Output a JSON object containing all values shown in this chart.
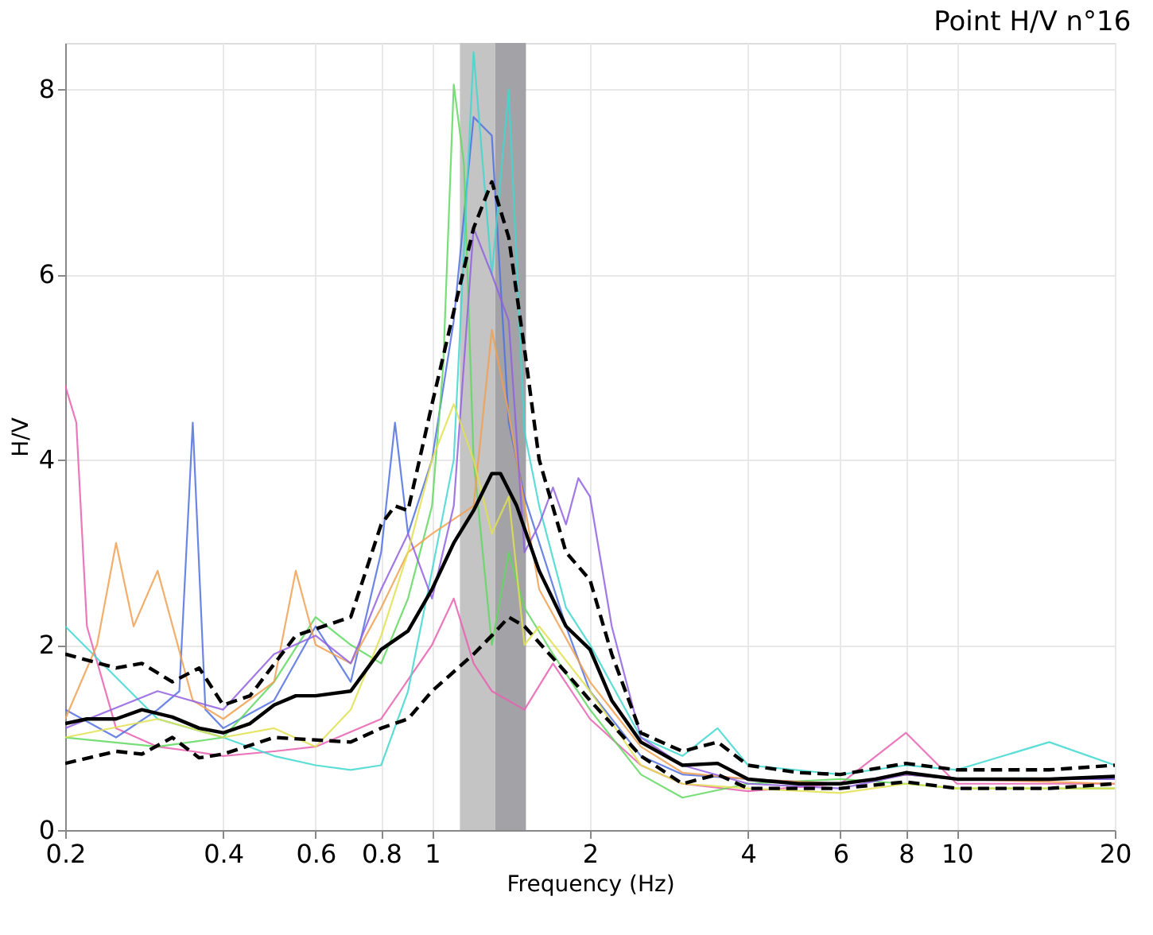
{
  "chart_data": {
    "type": "line",
    "title": "Point H/V n°16",
    "xlabel": "Frequency (Hz)",
    "ylabel": "H/V",
    "log": "x",
    "grid": true,
    "xlim": [
      0.2,
      20
    ],
    "xticks": [
      0.2,
      0.4,
      0.6,
      0.8,
      1,
      2,
      4,
      6,
      8,
      10,
      20
    ],
    "ylim": [
      0,
      8.5
    ],
    "yticks": [
      0,
      2,
      4,
      6,
      8
    ],
    "bands": [
      {
        "axis": "x",
        "from": 1.13,
        "to": 1.32,
        "color": "#c4c4c4"
      },
      {
        "axis": "x",
        "from": 1.32,
        "to": 1.51,
        "color": "#a3a3a7"
      }
    ],
    "series": [
      {
        "color": "#e860b0",
        "x": [
          0.2,
          0.21,
          0.22,
          0.25,
          0.3,
          0.35,
          0.4,
          0.5,
          0.6,
          0.8,
          1.0,
          1.1,
          1.2,
          1.3,
          1.5,
          1.7,
          2.0,
          2.5,
          3,
          4,
          6,
          8,
          10,
          20
        ],
        "values": [
          4.8,
          4.4,
          2.2,
          1.1,
          0.9,
          0.85,
          0.8,
          0.85,
          0.9,
          1.2,
          2.0,
          2.5,
          1.8,
          1.5,
          1.3,
          1.8,
          1.2,
          0.7,
          0.5,
          0.42,
          0.5,
          1.05,
          0.5,
          0.5
        ]
      },
      {
        "color": "#5070e0",
        "x": [
          0.2,
          0.25,
          0.3,
          0.33,
          0.35,
          0.37,
          0.4,
          0.5,
          0.6,
          0.7,
          0.8,
          0.85,
          0.9,
          1.0,
          1.1,
          1.2,
          1.3,
          1.4,
          1.5,
          1.8,
          2.0,
          2.5,
          3,
          4,
          6,
          8,
          10,
          20
        ],
        "values": [
          1.3,
          1.0,
          1.3,
          1.5,
          4.4,
          1.3,
          1.1,
          1.4,
          2.2,
          1.6,
          3.0,
          4.4,
          3.2,
          4.0,
          5.5,
          7.7,
          7.5,
          4.4,
          3.6,
          2.2,
          1.5,
          0.8,
          0.6,
          0.55,
          0.5,
          0.6,
          0.55,
          0.55
        ]
      },
      {
        "color": "#60d860",
        "x": [
          0.2,
          0.3,
          0.4,
          0.5,
          0.6,
          0.7,
          0.8,
          0.9,
          1.0,
          1.05,
          1.1,
          1.15,
          1.2,
          1.3,
          1.4,
          1.5,
          1.7,
          2.0,
          2.5,
          3,
          4,
          6,
          8,
          10,
          20
        ],
        "values": [
          1.0,
          0.9,
          1.0,
          1.6,
          2.3,
          2.0,
          1.8,
          2.5,
          3.5,
          5.0,
          8.05,
          7.2,
          4.0,
          2.0,
          3.0,
          2.4,
          1.9,
          1.3,
          0.6,
          0.35,
          0.5,
          0.55,
          0.5,
          0.45,
          0.45
        ]
      },
      {
        "color": "#40d8d0",
        "x": [
          0.2,
          0.3,
          0.4,
          0.5,
          0.6,
          0.7,
          0.8,
          0.9,
          1.0,
          1.1,
          1.2,
          1.3,
          1.4,
          1.5,
          1.6,
          1.8,
          2.0,
          2.5,
          3,
          3.5,
          4,
          6,
          8,
          10,
          15,
          20
        ],
        "values": [
          2.2,
          1.2,
          1.0,
          0.8,
          0.7,
          0.65,
          0.7,
          1.5,
          2.8,
          4.0,
          8.4,
          6.0,
          8.0,
          4.3,
          3.5,
          2.4,
          2.0,
          1.0,
          0.8,
          1.1,
          0.7,
          0.6,
          0.7,
          0.65,
          0.95,
          0.7
        ]
      },
      {
        "color": "#f0a050",
        "x": [
          0.2,
          0.23,
          0.25,
          0.27,
          0.3,
          0.35,
          0.4,
          0.5,
          0.55,
          0.6,
          0.7,
          0.8,
          0.9,
          1.0,
          1.2,
          1.3,
          1.4,
          1.6,
          2.0,
          2.5,
          3,
          4,
          6,
          8,
          10,
          20
        ],
        "values": [
          1.2,
          2.0,
          3.1,
          2.2,
          2.8,
          1.4,
          1.2,
          1.6,
          2.8,
          2.0,
          1.8,
          2.4,
          3.0,
          3.2,
          3.5,
          5.4,
          4.5,
          2.6,
          1.6,
          0.9,
          0.62,
          0.55,
          0.5,
          0.6,
          0.55,
          0.5
        ]
      },
      {
        "color": "#9060e0",
        "x": [
          0.2,
          0.3,
          0.4,
          0.5,
          0.6,
          0.7,
          0.8,
          0.9,
          1.0,
          1.1,
          1.2,
          1.3,
          1.4,
          1.5,
          1.6,
          1.7,
          1.8,
          1.9,
          2.0,
          2.2,
          2.5,
          3,
          4,
          6,
          8,
          10,
          20
        ],
        "values": [
          1.1,
          1.5,
          1.3,
          1.9,
          2.1,
          1.8,
          2.6,
          3.2,
          2.5,
          3.5,
          6.5,
          6.0,
          5.5,
          3.0,
          3.3,
          3.7,
          3.3,
          3.8,
          3.6,
          2.2,
          1.0,
          0.7,
          0.5,
          0.45,
          0.6,
          0.55,
          0.55
        ]
      },
      {
        "color": "#e0e050",
        "x": [
          0.2,
          0.3,
          0.4,
          0.5,
          0.6,
          0.7,
          0.8,
          0.9,
          1.0,
          1.1,
          1.2,
          1.3,
          1.4,
          1.5,
          1.6,
          2.0,
          2.5,
          3,
          4,
          6,
          8,
          10,
          20
        ],
        "values": [
          1.0,
          1.2,
          1.0,
          1.1,
          0.9,
          1.3,
          2.1,
          3.0,
          4.0,
          4.6,
          4.0,
          3.2,
          3.6,
          2.0,
          2.2,
          1.5,
          0.7,
          0.5,
          0.45,
          0.4,
          0.5,
          0.45,
          0.45
        ]
      },
      {
        "color": "#000000",
        "line_style": "dashed",
        "x": [
          0.2,
          0.25,
          0.28,
          0.32,
          0.36,
          0.4,
          0.45,
          0.55,
          0.7,
          0.8,
          0.85,
          0.9,
          1.0,
          1.1,
          1.2,
          1.3,
          1.4,
          1.5,
          1.6,
          1.8,
          2.0,
          2.2,
          2.5,
          3.0,
          3.5,
          4,
          5,
          6,
          8,
          10,
          15,
          20
        ],
        "values": [
          1.9,
          1.75,
          1.8,
          1.6,
          1.75,
          1.35,
          1.45,
          2.1,
          2.3,
          3.3,
          3.5,
          3.45,
          4.6,
          5.6,
          6.5,
          7.0,
          6.4,
          5.2,
          4.0,
          3.0,
          2.7,
          1.9,
          1.05,
          0.85,
          0.95,
          0.7,
          0.62,
          0.6,
          0.72,
          0.65,
          0.65,
          0.7
        ]
      },
      {
        "color": "#000000",
        "line_style": "dashed",
        "x": [
          0.2,
          0.25,
          0.28,
          0.32,
          0.36,
          0.4,
          0.5,
          0.7,
          0.8,
          0.9,
          1.0,
          1.2,
          1.3,
          1.4,
          1.5,
          1.8,
          2.0,
          2.5,
          3.0,
          3.5,
          4,
          6,
          8,
          10,
          15,
          20
        ],
        "values": [
          0.72,
          0.85,
          0.82,
          1.0,
          0.78,
          0.82,
          1.0,
          0.95,
          1.1,
          1.2,
          1.5,
          1.9,
          2.1,
          2.3,
          2.2,
          1.7,
          1.4,
          0.8,
          0.5,
          0.6,
          0.45,
          0.45,
          0.52,
          0.45,
          0.45,
          0.5
        ]
      },
      {
        "color": "#000000",
        "line_style": "solid",
        "x": [
          0.2,
          0.22,
          0.25,
          0.28,
          0.32,
          0.36,
          0.4,
          0.45,
          0.5,
          0.55,
          0.6,
          0.7,
          0.8,
          0.9,
          1.0,
          1.1,
          1.2,
          1.3,
          1.35,
          1.45,
          1.6,
          1.8,
          2.0,
          2.2,
          2.5,
          3.0,
          3.5,
          4,
          5,
          6,
          7,
          8,
          10,
          15,
          20
        ],
        "values": [
          1.15,
          1.2,
          1.2,
          1.3,
          1.22,
          1.1,
          1.05,
          1.15,
          1.35,
          1.45,
          1.45,
          1.5,
          1.95,
          2.15,
          2.6,
          3.1,
          3.45,
          3.85,
          3.85,
          3.5,
          2.8,
          2.2,
          1.95,
          1.4,
          0.95,
          0.7,
          0.72,
          0.55,
          0.5,
          0.5,
          0.55,
          0.62,
          0.55,
          0.55,
          0.58
        ]
      }
    ]
  }
}
